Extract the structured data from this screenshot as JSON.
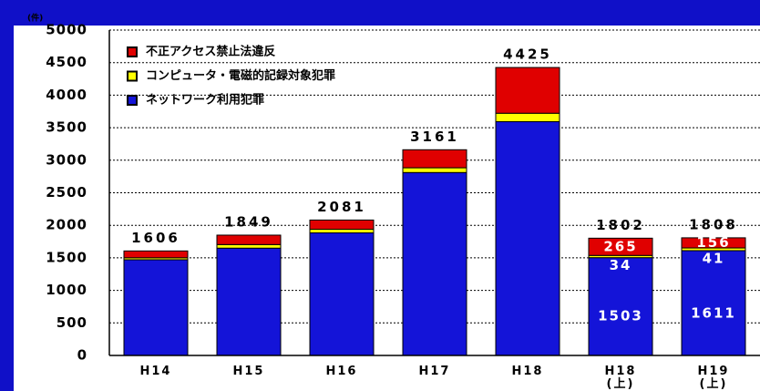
{
  "chart_data": {
    "type": "stacked_bar",
    "y_unit": "(件)",
    "categories": [
      "H14",
      "H15",
      "H16",
      "H17",
      "H18",
      "H18\n(上)",
      "H19\n(上)"
    ],
    "series": [
      {
        "name": "ネットワーク利用犯罪",
        "color": "#1414d8",
        "values": [
          1471,
          1649,
          1884,
          2811,
          3593,
          1503,
          1611
        ],
        "value_labels": [
          null,
          null,
          null,
          null,
          null,
          "1503",
          "1611"
        ]
      },
      {
        "name": "コンピュータ・電磁的記録対象犯罪",
        "color": "#ffff00",
        "values": [
          30,
          55,
          55,
          73,
          129,
          34,
          41
        ],
        "value_labels": [
          null,
          null,
          null,
          null,
          null,
          "34",
          "41"
        ]
      },
      {
        "name": "不正アクセス禁止法違反",
        "color": "#e00000",
        "values": [
          105,
          145,
          142,
          277,
          703,
          265,
          156
        ],
        "value_labels": [
          null,
          null,
          null,
          null,
          null,
          "265",
          "156"
        ]
      }
    ],
    "totals": [
      1606,
      1849,
      2081,
      3161,
      4425,
      1802,
      1808
    ],
    "ylim": [
      0,
      5000
    ],
    "yticks": [
      0,
      500,
      1000,
      1500,
      2000,
      2500,
      3000,
      3500,
      4000,
      4500,
      5000
    ],
    "grid": true,
    "legend": "upper left"
  }
}
